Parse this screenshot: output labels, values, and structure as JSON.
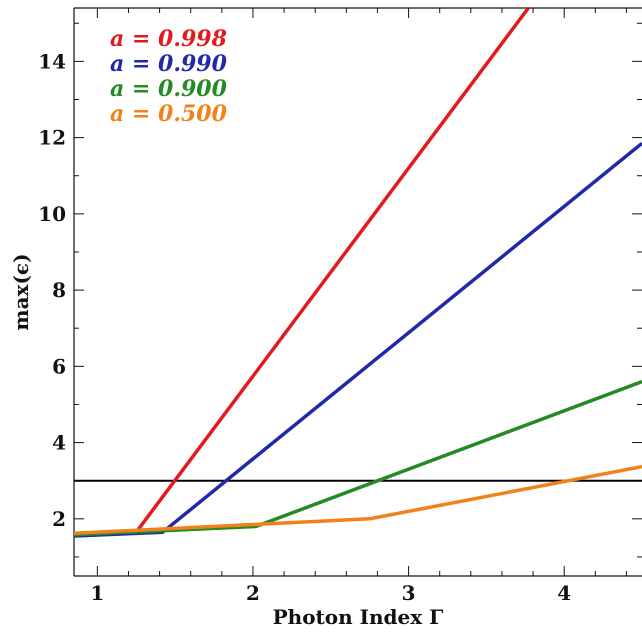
{
  "chart_data": {
    "type": "line",
    "xlabel": "Photon Index Γ",
    "ylabel": "max(ϵ)",
    "xlim": [
      0.85,
      4.5
    ],
    "ylim": [
      0.5,
      15.4
    ],
    "xticks": [
      1,
      2,
      3,
      4
    ],
    "yticks": [
      2,
      4,
      6,
      8,
      10,
      12,
      14
    ],
    "grid": false,
    "legend_position": "top-left",
    "reference_line": {
      "y": 3,
      "color": "#000000"
    },
    "series": [
      {
        "name": "a = 0.998",
        "color": "#e3191d",
        "x": [
          0.85,
          1.25,
          3.77
        ],
        "y": [
          1.58,
          1.65,
          15.4
        ]
      },
      {
        "name": "a = 0.990",
        "color": "#2129a8",
        "x": [
          0.85,
          1.42,
          4.5
        ],
        "y": [
          1.55,
          1.65,
          11.85
        ]
      },
      {
        "name": "a = 0.900",
        "color": "#228b22",
        "x": [
          0.85,
          2.02,
          4.5
        ],
        "y": [
          1.58,
          1.8,
          5.6
        ]
      },
      {
        "name": "a = 0.500",
        "color": "#f08219",
        "x": [
          0.85,
          2.75,
          4.5
        ],
        "y": [
          1.62,
          2.0,
          3.37
        ]
      }
    ]
  }
}
